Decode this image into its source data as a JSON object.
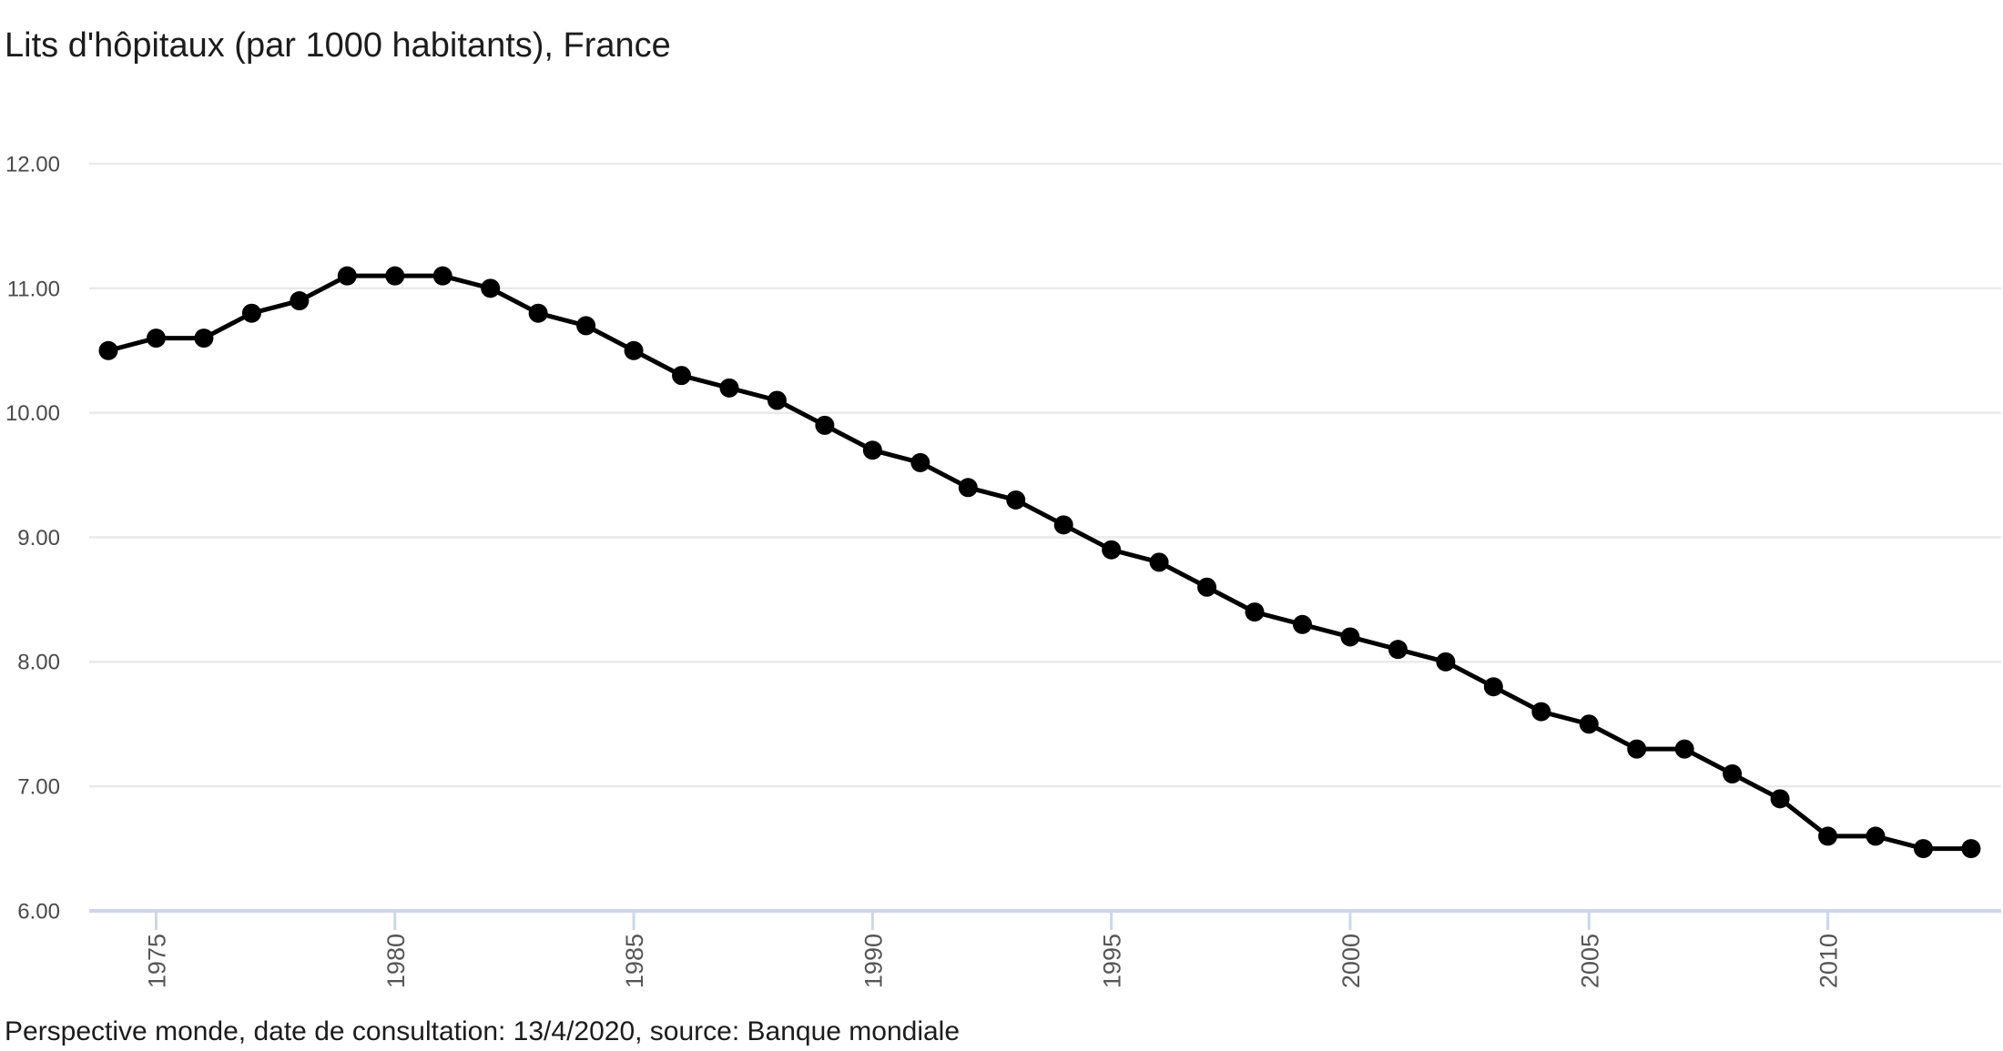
{
  "page": {
    "title": "Lits d'hôpitaux (par 1000 habitants), France",
    "source_note": "Perspective monde, date de consultation: 13/4/2020, source: Banque mondiale"
  },
  "chart_data": {
    "type": "line",
    "title": "Lits d'hôpitaux (par 1000 habitants), France",
    "series_name": "Lits d'hôpitaux (par 1000 habitants)",
    "x": [
      1974,
      1975,
      1976,
      1977,
      1978,
      1979,
      1980,
      1981,
      1982,
      1983,
      1984,
      1985,
      1986,
      1987,
      1988,
      1989,
      1990,
      1991,
      1992,
      1993,
      1994,
      1995,
      1996,
      1997,
      1998,
      1999,
      2000,
      2001,
      2002,
      2003,
      2004,
      2005,
      2006,
      2007,
      2008,
      2009,
      2010,
      2011,
      2012,
      2013
    ],
    "values": [
      10.5,
      10.6,
      10.6,
      10.8,
      10.9,
      11.1,
      11.1,
      11.1,
      11.0,
      10.8,
      10.7,
      10.5,
      10.3,
      10.2,
      10.1,
      9.9,
      9.7,
      9.6,
      9.4,
      9.3,
      9.1,
      8.9,
      8.8,
      8.6,
      8.4,
      8.3,
      8.2,
      8.1,
      8.0,
      7.8,
      7.6,
      7.5,
      7.3,
      7.3,
      7.1,
      6.9,
      6.6,
      6.6,
      6.5,
      6.5
    ],
    "xlabel": "",
    "ylabel": "",
    "ylim": [
      6,
      12
    ],
    "y_ticks": [
      6,
      7,
      8,
      9,
      10,
      11,
      12
    ],
    "y_tick_labels": [
      "6.00",
      "7.00",
      "8.00",
      "9.00",
      "10.00",
      "11.00",
      "12.00"
    ],
    "x_ticks": [
      1975,
      1980,
      1985,
      1990,
      1995,
      2000,
      2005,
      2010
    ],
    "grid": true,
    "legend": "none",
    "marker": "circle",
    "colors": {
      "line": "#000000",
      "marker": "#000000",
      "gridline": "#eaeaea",
      "axis": "#ccd6ec",
      "tick_label": "#4a4a4a",
      "text": "#1c1c1c",
      "background": "#ffffff"
    }
  }
}
